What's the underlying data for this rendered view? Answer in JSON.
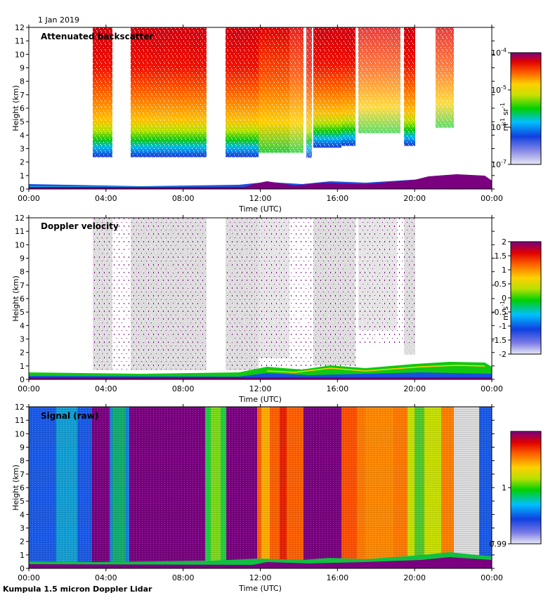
{
  "date_label": "1 Jan 2019",
  "footer": "Kumpula 1.5 micron Doppler Lidar",
  "chart_data": [
    {
      "type": "heatmap",
      "title": "Attenuated backscatter",
      "xlabel": "Time (UTC)",
      "ylabel": "Height (km)",
      "xlim": [
        0,
        24
      ],
      "ylim": [
        0,
        12
      ],
      "x_ticks": [
        "00:00",
        "04:00",
        "08:00",
        "12:00",
        "16:00",
        "20:00",
        "00:00"
      ],
      "y_ticks": [
        "0",
        "1",
        "2",
        "3",
        "4",
        "5",
        "6",
        "7",
        "8",
        "9",
        "10",
        "11",
        "12"
      ],
      "colorbar": {
        "label_parts": [
          "m",
          "-1",
          " sr",
          "-1"
        ],
        "scale": "log",
        "ticks": [
          {
            "base": "10",
            "exp": "-4",
            "pos": 1.0
          },
          {
            "base": "10",
            "exp": "-5",
            "pos": 0.667
          },
          {
            "base": "10",
            "exp": "-6",
            "pos": 0.333
          },
          {
            "base": "10",
            "exp": "-7",
            "pos": 0.0
          }
        ]
      }
    },
    {
      "type": "heatmap",
      "title": "Doppler velocity",
      "xlabel": "Time (UTC)",
      "ylabel": "Height (km)",
      "xlim": [
        0,
        24
      ],
      "ylim": [
        0,
        12
      ],
      "x_ticks": [
        "00:00",
        "04:00",
        "08:00",
        "12:00",
        "16:00",
        "20:00",
        "00:00"
      ],
      "y_ticks": [
        "0",
        "1",
        "2",
        "3",
        "4",
        "5",
        "6",
        "7",
        "8",
        "9",
        "10",
        "11",
        "12"
      ],
      "colorbar": {
        "label_parts": [
          "m s",
          "-1"
        ],
        "scale": "linear",
        "ticks": [
          {
            "base": "2",
            "exp": "",
            "pos": 1.0
          },
          {
            "base": "1.5",
            "exp": "",
            "pos": 0.875
          },
          {
            "base": "1",
            "exp": "",
            "pos": 0.75
          },
          {
            "base": "0.5",
            "exp": "",
            "pos": 0.625
          },
          {
            "base": "0",
            "exp": "",
            "pos": 0.5
          },
          {
            "base": "-0.5",
            "exp": "",
            "pos": 0.375
          },
          {
            "base": "-1",
            "exp": "",
            "pos": 0.25
          },
          {
            "base": "-1.5",
            "exp": "",
            "pos": 0.125
          },
          {
            "base": "-2",
            "exp": "",
            "pos": 0.0
          }
        ]
      }
    },
    {
      "type": "heatmap",
      "title": "Signal (raw)",
      "xlabel": "Time (UTC)",
      "ylabel": "Height (km)",
      "xlim": [
        0,
        24
      ],
      "ylim": [
        0,
        12
      ],
      "x_ticks": [
        "00:00",
        "04:00",
        "08:00",
        "12:00",
        "16:00",
        "20:00",
        "00:00"
      ],
      "y_ticks": [
        "0",
        "1",
        "2",
        "3",
        "4",
        "5",
        "6",
        "7",
        "8",
        "9",
        "10",
        "11",
        "12"
      ],
      "colorbar": {
        "label_parts": [],
        "scale": "linear",
        "ticks": [
          {
            "base": "1",
            "exp": "",
            "pos": 0.5
          },
          {
            "base": "0.99",
            "exp": "",
            "pos": 0.0
          }
        ]
      }
    }
  ],
  "colors": {
    "grey_fill": "#dcdcdc",
    "purple": "#7a0080"
  }
}
